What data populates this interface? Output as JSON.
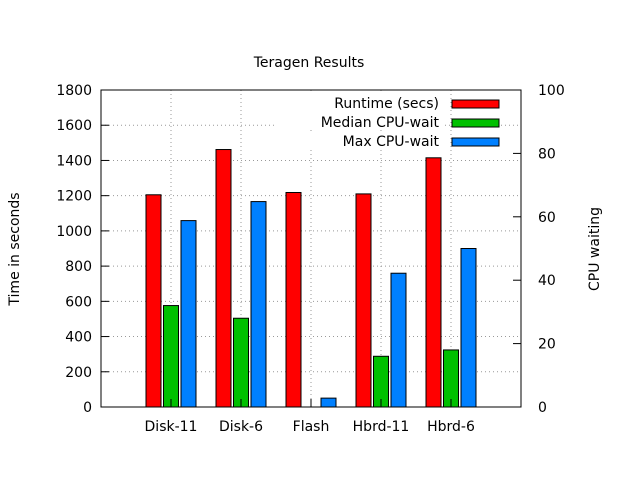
{
  "chart_data": {
    "type": "bar",
    "title": "Teragen Results",
    "ylabel": "Time in seconds",
    "y2label": "CPU waiting",
    "categories": [
      "Disk-11",
      "Disk-6",
      "Flash",
      "Hbrd-11",
      "Hbrd-6"
    ],
    "ylim": [
      0,
      1800
    ],
    "y2lim": [
      0,
      100
    ],
    "yticks": [
      0,
      200,
      400,
      600,
      800,
      1000,
      1200,
      1400,
      1600,
      1800
    ],
    "y2ticks": [
      0,
      20,
      40,
      60,
      80,
      100
    ],
    "grid": true,
    "legend_position": "top-right",
    "series": [
      {
        "name": "Runtime (secs)",
        "color": "#ff0000",
        "axis": "y",
        "values": [
          1205,
          1462,
          1218,
          1210,
          1415
        ]
      },
      {
        "name": "Median CPU-wait",
        "color": "#00c000",
        "axis": "y2",
        "values": [
          32,
          28,
          0,
          16,
          18
        ]
      },
      {
        "name": "Max CPU-wait",
        "color": "#0080ff",
        "axis": "y2",
        "values": [
          58.8,
          64.8,
          2.8,
          42.2,
          50
        ]
      }
    ]
  }
}
